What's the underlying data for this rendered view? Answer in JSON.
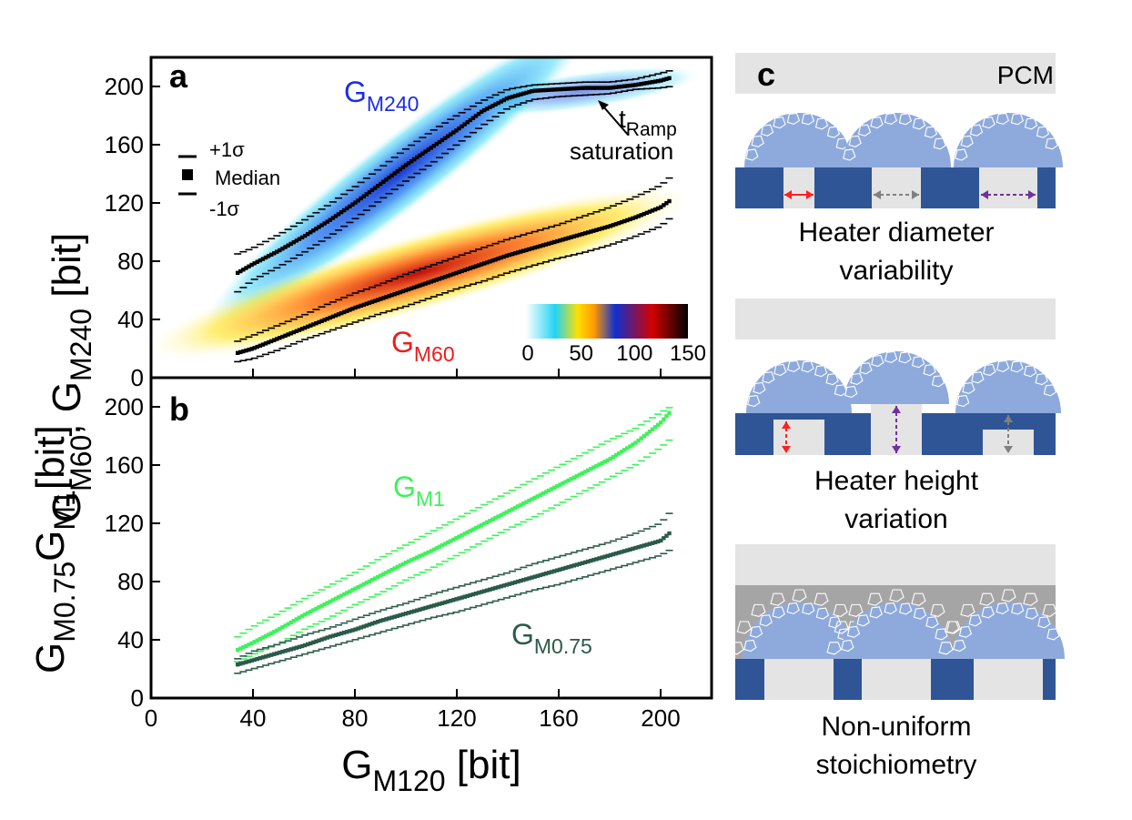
{
  "figure": {
    "y_axis_title_a": {
      "main": "G",
      "sub1": "M60",
      "comma": ", G",
      "sub2": "M240",
      "unit": " [bit]"
    },
    "y_axis_title_b": {
      "main1": "G",
      "sub1": "M0.75",
      "main2": "G",
      "sub2": "M1",
      "unit": "[bit]"
    },
    "x_axis_title": {
      "main": "G",
      "sub": "M120",
      "unit": " [bit]"
    }
  },
  "panel_a": {
    "label": "a",
    "legend": {
      "plus_sigma": "+1σ",
      "median": "Median",
      "minus_sigma": "-1σ"
    },
    "annotation": {
      "line1_main": "t",
      "line1_sub": "Ramp",
      "line2": "saturation"
    },
    "series_labels": {
      "m240": {
        "main": "G",
        "sub": "M240",
        "color": "#1a2cf0"
      },
      "m60": {
        "main": "G",
        "sub": "M60",
        "color": "#f01a1a"
      }
    },
    "colorbar": {
      "ticks": [
        "0",
        "50",
        "100",
        "150"
      ],
      "stops": [
        "#ffffff",
        "#22d3f5",
        "#ffe000",
        "#ff9a00",
        "#1030d0",
        "#d40000",
        "#000000"
      ]
    }
  },
  "panel_b": {
    "label": "b",
    "series_labels": {
      "m1": {
        "main": "G",
        "sub": "M1",
        "color": "#3ef25a"
      },
      "m075": {
        "main": "G",
        "sub": "M0.75",
        "color": "#2a5a48"
      }
    }
  },
  "panel_c": {
    "label": "c",
    "pcm_label": "PCM",
    "captions": [
      {
        "line1": "Heater diameter",
        "line2": "variability"
      },
      {
        "line1": "Heater height",
        "line2": "variation"
      },
      {
        "line1": "Non-uniform",
        "line2": "stoichiometry"
      }
    ],
    "colors": {
      "heater_blue": "#2f5596",
      "dome": "#8eaadc",
      "pcm_gray": "#e4e4e4",
      "dark_gray": "#a5a5a5",
      "arrow_red": "#ff2020",
      "arrow_purple": "#7030a0",
      "arrow_gray": "#808080"
    }
  },
  "chart_data": [
    {
      "panel": "a",
      "type": "scatter",
      "title": "",
      "xlabel": "GM120 [bit]",
      "ylabel": "GM60, GM240 [bit]",
      "xlim": [
        0,
        220
      ],
      "ylim": [
        0,
        220
      ],
      "x_ticks": [
        0,
        40,
        80,
        120,
        160,
        200
      ],
      "y_ticks": [
        0,
        40,
        80,
        120,
        160,
        200
      ],
      "colorbar_range": [
        0,
        150
      ],
      "series": [
        {
          "name": "GM240",
          "x": [
            34,
            40,
            50,
            60,
            70,
            80,
            90,
            100,
            110,
            120,
            130,
            140,
            150,
            160,
            170,
            180,
            190,
            200,
            204
          ],
          "median": [
            72,
            78,
            87,
            97,
            108,
            120,
            133,
            146,
            158,
            170,
            183,
            192,
            197,
            198,
            199,
            199,
            201,
            204,
            206
          ],
          "plus_sigma": [
            85,
            89,
            98,
            108,
            119,
            131,
            144,
            157,
            169,
            180,
            190,
            198,
            201,
            202,
            203,
            203,
            205,
            209,
            211
          ],
          "minus_sigma": [
            59,
            67,
            76,
            86,
            97,
            109,
            122,
            135,
            147,
            160,
            173,
            185,
            191,
            193,
            194,
            195,
            198,
            199,
            200
          ]
        },
        {
          "name": "GM60",
          "x": [
            34,
            40,
            50,
            60,
            70,
            80,
            90,
            100,
            110,
            120,
            130,
            140,
            150,
            160,
            170,
            180,
            190,
            200,
            204
          ],
          "median": [
            17,
            20,
            27,
            34,
            41,
            48,
            54,
            60,
            66,
            72,
            78,
            84,
            89,
            94,
            99,
            104,
            110,
            117,
            122
          ],
          "plus_sigma": [
            25,
            29,
            36,
            43,
            51,
            58,
            64,
            71,
            77,
            83,
            89,
            95,
            100,
            105,
            111,
            117,
            124,
            132,
            138
          ],
          "minus_sigma": [
            11,
            13,
            19,
            26,
            32,
            38,
            44,
            49,
            55,
            61,
            66,
            72,
            77,
            82,
            86,
            91,
            97,
            104,
            110
          ]
        }
      ]
    },
    {
      "panel": "b",
      "type": "scatter",
      "title": "",
      "xlabel": "GM120 [bit]",
      "ylabel": "GM0.75, GM1 [bit]",
      "xlim": [
        0,
        220
      ],
      "ylim": [
        0,
        220
      ],
      "x_ticks": [
        0,
        40,
        80,
        120,
        160,
        200
      ],
      "y_ticks": [
        0,
        40,
        80,
        120,
        160,
        200
      ],
      "series": [
        {
          "name": "GM1",
          "x": [
            34,
            40,
            50,
            60,
            70,
            80,
            90,
            100,
            110,
            120,
            130,
            140,
            150,
            160,
            170,
            180,
            190,
            200,
            204
          ],
          "median": [
            33,
            38,
            47,
            57,
            66,
            75,
            84,
            93,
            101,
            110,
            119,
            128,
            137,
            146,
            155,
            164,
            175,
            189,
            197
          ],
          "plus_sigma": [
            42,
            49,
            58,
            68,
            77,
            86,
            96,
            105,
            114,
            123,
            132,
            141,
            150,
            159,
            168,
            177,
            185,
            196,
            200
          ],
          "minus_sigma": [
            25,
            30,
            37,
            47,
            55,
            64,
            72,
            81,
            89,
            98,
            107,
            116,
            124,
            133,
            142,
            151,
            160,
            172,
            178
          ]
        },
        {
          "name": "GM0.75",
          "x": [
            34,
            40,
            50,
            60,
            70,
            80,
            90,
            100,
            110,
            120,
            130,
            140,
            150,
            160,
            170,
            180,
            190,
            200,
            204
          ],
          "median": [
            23,
            26,
            31,
            36,
            42,
            47,
            53,
            58,
            63,
            68,
            73,
            78,
            83,
            88,
            93,
            98,
            103,
            108,
            114
          ],
          "plus_sigma": [
            27,
            32,
            37,
            43,
            48,
            54,
            60,
            65,
            71,
            76,
            81,
            86,
            92,
            97,
            102,
            107,
            113,
            120,
            128
          ],
          "minus_sigma": [
            17,
            20,
            25,
            30,
            35,
            40,
            45,
            50,
            55,
            59,
            64,
            69,
            74,
            78,
            83,
            88,
            93,
            98,
            102
          ]
        }
      ]
    }
  ]
}
